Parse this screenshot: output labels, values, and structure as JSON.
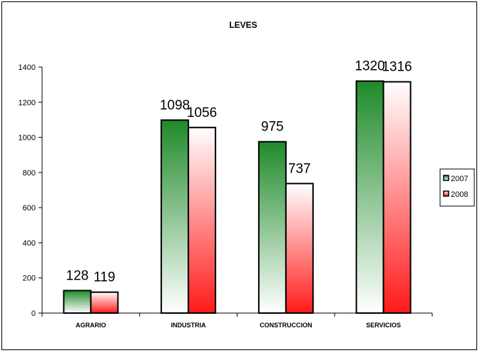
{
  "chart_data": {
    "type": "bar",
    "title": "LEVES",
    "xlabel": "",
    "ylabel": "",
    "categories": [
      "AGRARIO",
      "INDUSTRIA",
      "CONSTRUCCION",
      "SERVICIOS"
    ],
    "series": [
      {
        "name": "2007",
        "values": [
          128,
          1098,
          975,
          1320
        ]
      },
      {
        "name": "2008",
        "values": [
          119,
          1056,
          737,
          1316
        ]
      }
    ],
    "ylim": [
      0,
      1400
    ],
    "yticks": [
      "0",
      "200",
      "400",
      "600",
      "800",
      "1000",
      "1200",
      "1400"
    ],
    "grid": false,
    "legend_position": "right",
    "colors": {
      "series_2007_top": "#1f8a2a",
      "series_2007_bottom": "#ffffff",
      "series_2008_top": "#ffffff",
      "series_2008_bottom": "#ff1a1a",
      "axis": "#000000"
    }
  }
}
